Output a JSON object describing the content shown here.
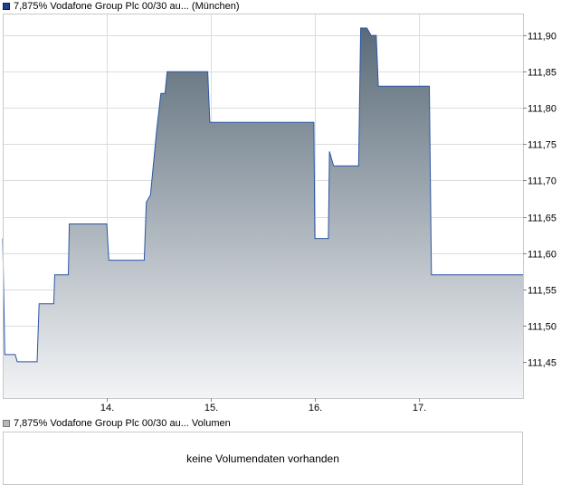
{
  "legend": {
    "price_label": "7,875% Vodafone Group Plc 00/30 au... (München)",
    "volume_label": "7,875% Vodafone Group Plc 00/30 au... Volumen"
  },
  "volume_panel": {
    "message": "keine Volumendaten vorhanden"
  },
  "colors": {
    "line": "#2b55a6",
    "fill_top": "#5a6b78",
    "fill_bottom": "#f3f4f7",
    "grid": "#dcdcdc",
    "border": "#c8c8c8"
  },
  "chart_data": {
    "type": "area",
    "title": "",
    "xlabel": "",
    "ylabel": "",
    "x_ticks": [
      "14.",
      "15.",
      "16.",
      "17."
    ],
    "y_ticks": [
      "111,90",
      "111,85",
      "111,80",
      "111,75",
      "111,70",
      "111,65",
      "111,60",
      "111,55",
      "111,50",
      "111,45"
    ],
    "ylim": [
      111.4,
      111.93
    ],
    "xlim": [
      13.0,
      18.0
    ],
    "grid": true,
    "series": [
      {
        "values": [
          [
            13.0,
            111.62
          ],
          [
            13.02,
            111.46
          ],
          [
            13.12,
            111.46
          ],
          [
            13.14,
            111.45
          ],
          [
            13.33,
            111.45
          ],
          [
            13.35,
            111.53
          ],
          [
            13.49,
            111.53
          ],
          [
            13.5,
            111.57
          ],
          [
            13.63,
            111.57
          ],
          [
            13.64,
            111.64
          ],
          [
            14.0,
            111.64
          ],
          [
            14.02,
            111.59
          ],
          [
            14.36,
            111.59
          ],
          [
            14.38,
            111.67
          ],
          [
            14.42,
            111.68
          ],
          [
            14.48,
            111.77
          ],
          [
            14.52,
            111.82
          ],
          [
            14.56,
            111.82
          ],
          [
            14.58,
            111.85
          ],
          [
            14.97,
            111.85
          ],
          [
            14.99,
            111.78
          ],
          [
            15.99,
            111.78
          ],
          [
            16.0,
            111.62
          ],
          [
            16.13,
            111.62
          ],
          [
            16.14,
            111.74
          ],
          [
            16.18,
            111.72
          ],
          [
            16.42,
            111.72
          ],
          [
            16.44,
            111.91
          ],
          [
            16.5,
            111.91
          ],
          [
            16.54,
            111.9
          ],
          [
            16.59,
            111.9
          ],
          [
            16.61,
            111.83
          ],
          [
            17.1,
            111.83
          ],
          [
            17.12,
            111.57
          ],
          [
            18.0,
            111.57
          ]
        ]
      }
    ]
  }
}
